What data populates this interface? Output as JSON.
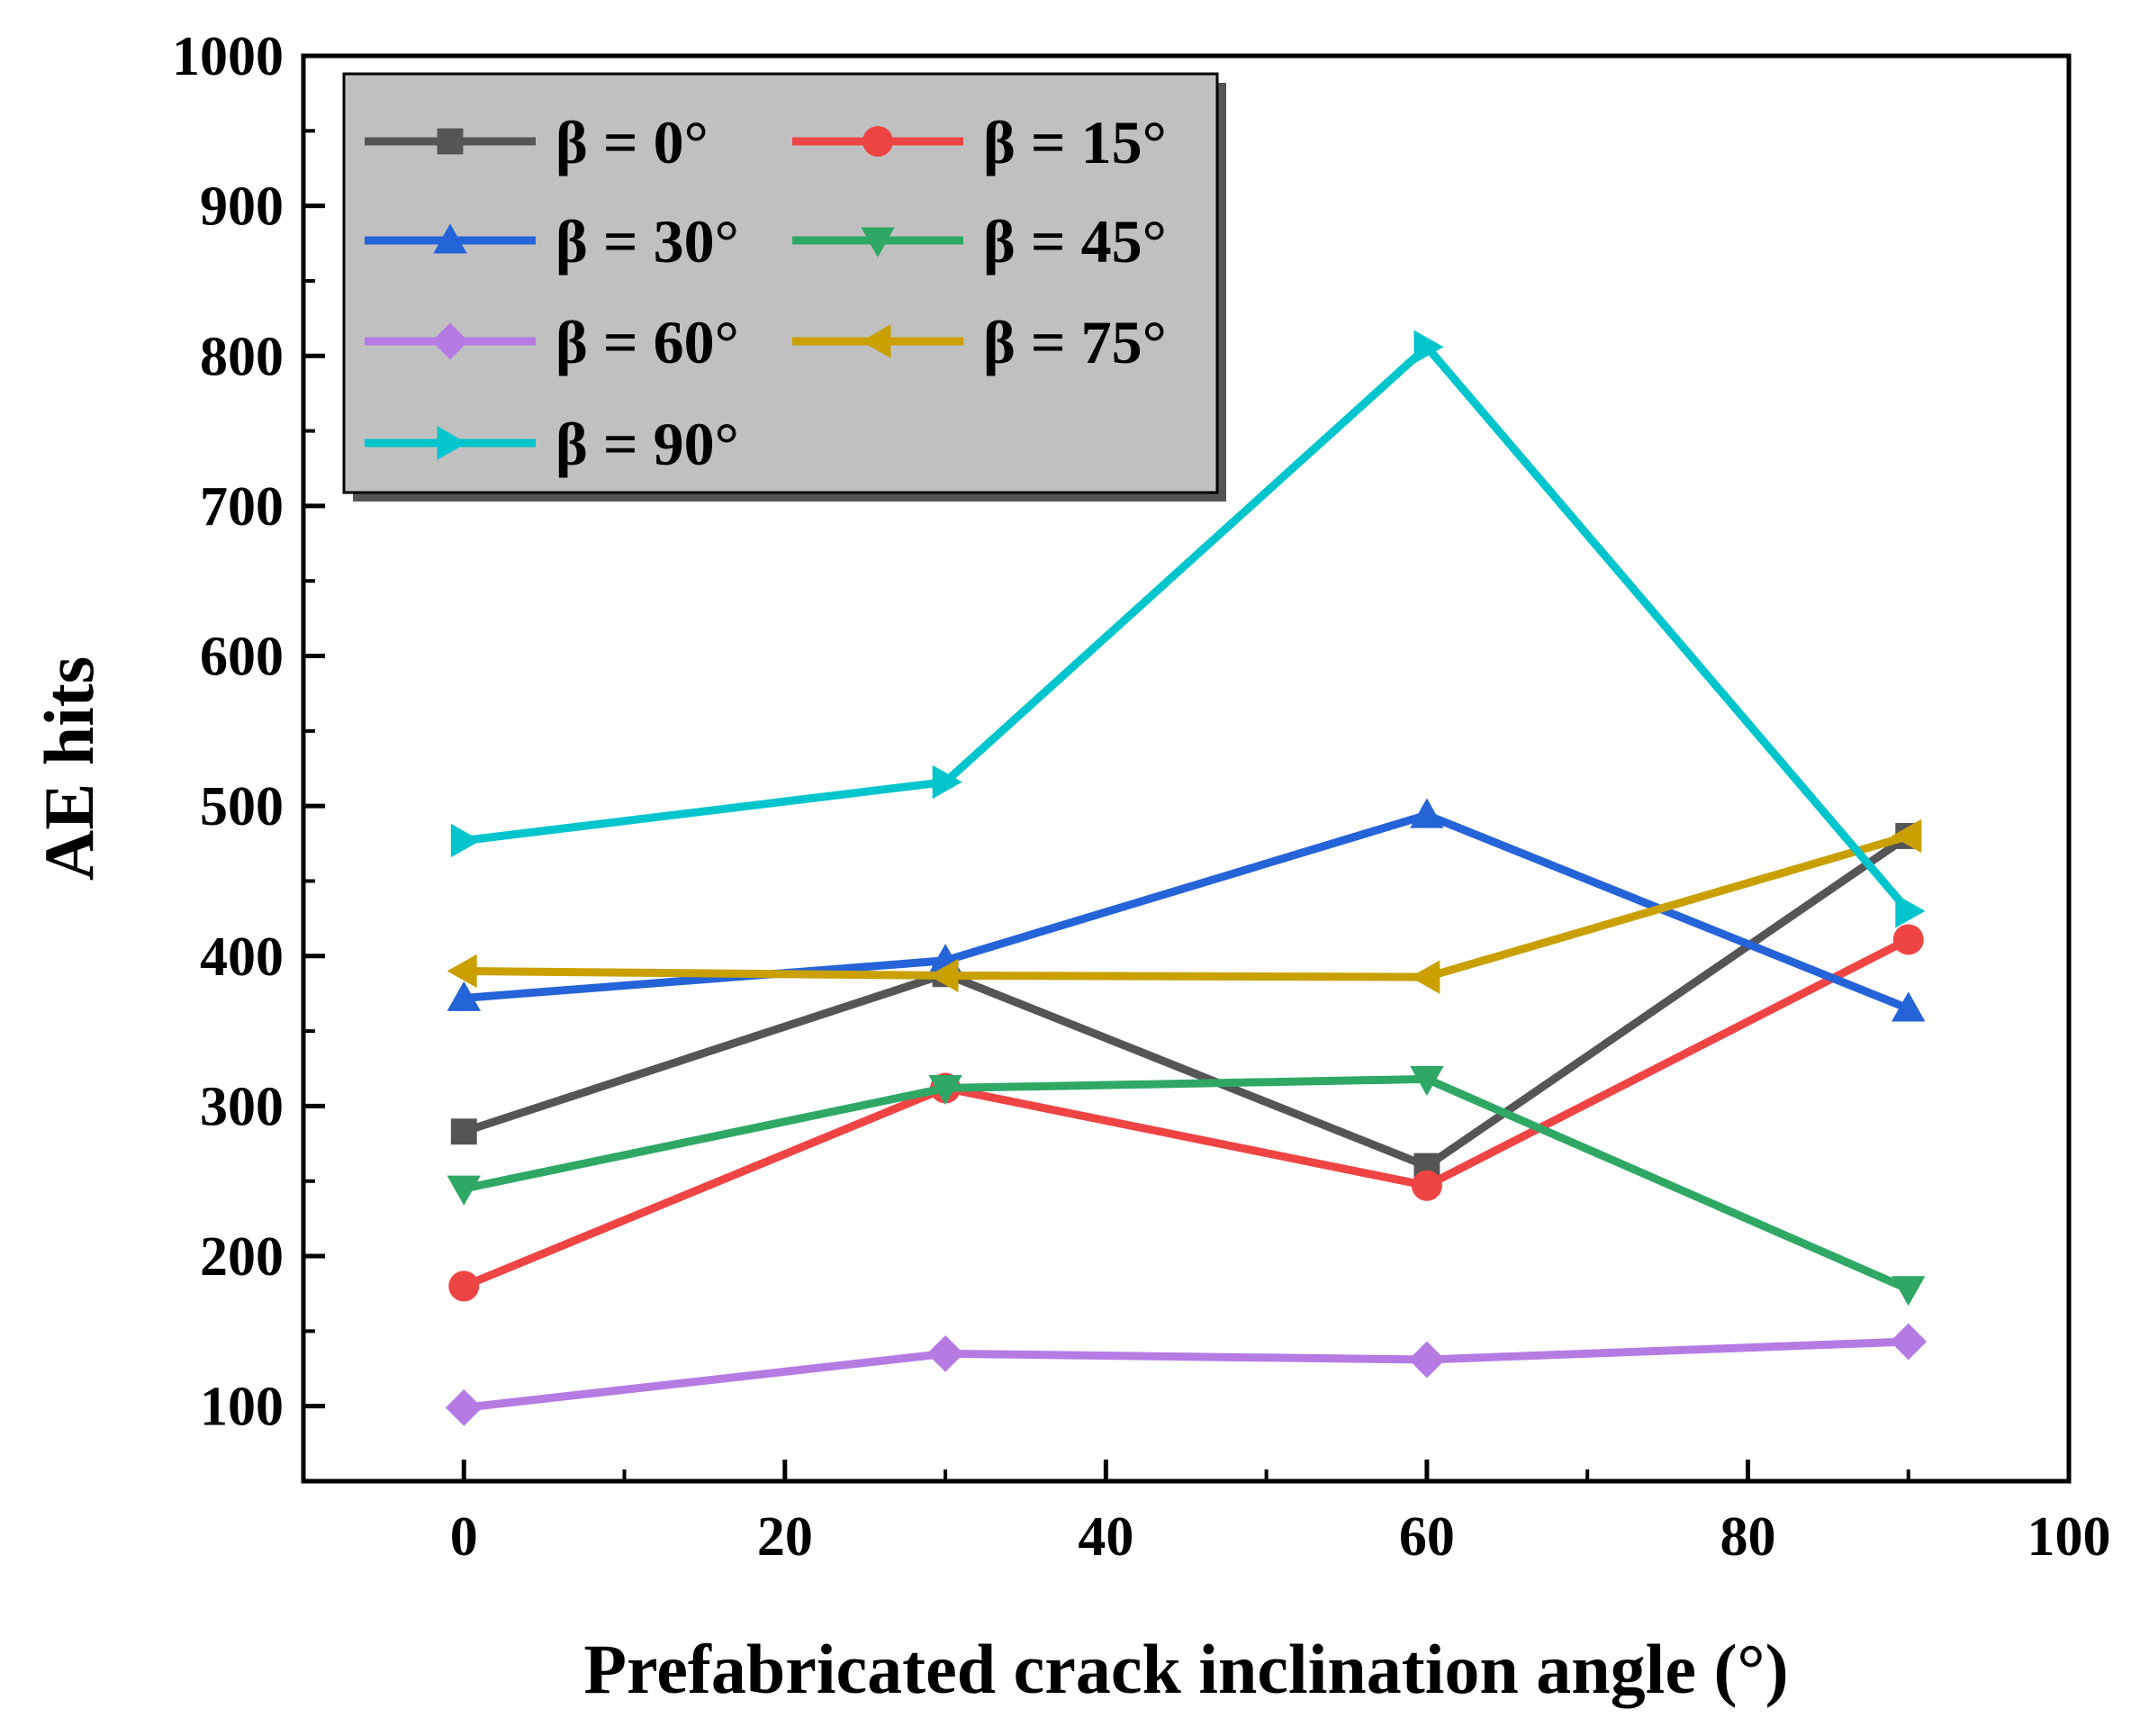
{
  "chart_data": {
    "type": "line",
    "xlabel": "Prefabricated crack inclination angle (°)",
    "ylabel": "AE hits",
    "xlim": [
      -10,
      100
    ],
    "ylim": [
      50,
      1000
    ],
    "xticks": [
      0,
      20,
      40,
      60,
      80,
      100
    ],
    "yticks": [
      100,
      200,
      300,
      400,
      500,
      600,
      700,
      800,
      900,
      1000
    ],
    "x": [
      0,
      30,
      60,
      90
    ],
    "grid": false,
    "legend": {
      "placement": "top-left",
      "background": "#c0c0c0",
      "columns": 2
    },
    "series": [
      {
        "name": "β = 0°",
        "color": "#555555",
        "marker": "square",
        "values": [
          283,
          388,
          260,
          480
        ]
      },
      {
        "name": "β = 15°",
        "color": "#ef4444",
        "marker": "circle",
        "values": [
          180,
          312,
          247,
          411
        ]
      },
      {
        "name": "β = 30°",
        "color": "#2563d8",
        "marker": "triangle-up",
        "values": [
          372,
          397,
          494,
          365
        ]
      },
      {
        "name": "β = 45°",
        "color": "#2fa866",
        "marker": "triangle-down",
        "values": [
          245,
          312,
          318,
          178
        ]
      },
      {
        "name": "β = 60°",
        "color": "#b57be3",
        "marker": "diamond",
        "values": [
          99,
          135,
          131,
          143
        ]
      },
      {
        "name": "β = 75°",
        "color": "#c9a000",
        "marker": "triangle-left",
        "values": [
          390,
          387,
          386,
          480
        ]
      },
      {
        "name": "β = 90°",
        "color": "#00c5cd",
        "marker": "triangle-right",
        "values": [
          477,
          516,
          806,
          430
        ]
      }
    ]
  }
}
